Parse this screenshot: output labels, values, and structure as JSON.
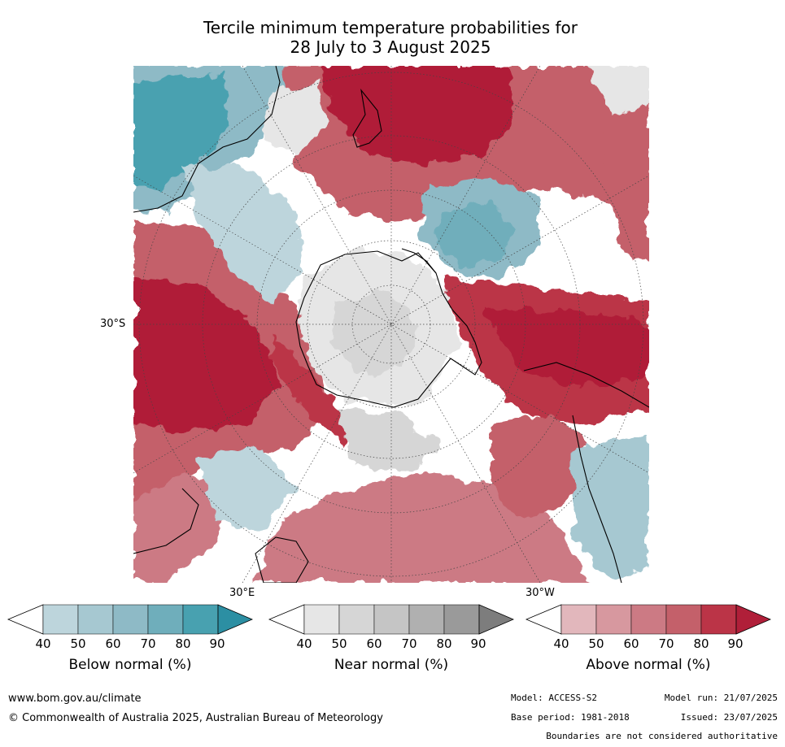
{
  "title_line1": "Tercile minimum temperature probabilities for",
  "title_line2": "28 July to 3 August 2025",
  "map": {
    "lat_label": "30°S",
    "lon_label_east": "30°E",
    "lon_label_west": "30°W",
    "colors": {
      "below": [
        "#bdd5dc",
        "#a6c8d1",
        "#8ebac6",
        "#6faebb",
        "#48a1b0",
        "#2c8fa3"
      ],
      "near": [
        "#e6e6e6",
        "#d6d6d6",
        "#c5c5c5",
        "#b0b0b0",
        "#9a9a9a",
        "#7d7d7d"
      ],
      "above": [
        "#e2b7bc",
        "#d7989f",
        "#cc7a84",
        "#c4606a",
        "#bb3447",
        "#b01f39"
      ],
      "land_outline": "#000000"
    }
  },
  "colorbars": [
    {
      "id": "below",
      "label": "Below normal (%)",
      "ticks": [
        "40",
        "50",
        "60",
        "70",
        "80",
        "90"
      ]
    },
    {
      "id": "near",
      "label": "Near normal (%)",
      "ticks": [
        "40",
        "50",
        "60",
        "70",
        "80",
        "90"
      ]
    },
    {
      "id": "above",
      "label": "Above normal (%)",
      "ticks": [
        "40",
        "50",
        "60",
        "70",
        "80",
        "90"
      ]
    }
  ],
  "footer": {
    "website": "www.bom.gov.au/climate",
    "copyright": "© Commonwealth of Australia 2025, Australian Bureau of Meteorology",
    "model": "Model: ACCESS-S2",
    "model_run": "Model run: 21/07/2025",
    "base_period": "Base period: 1981-2018",
    "issued": "Issued: 23/07/2025",
    "disclaimer": "Boundaries are not considered authoritative"
  }
}
